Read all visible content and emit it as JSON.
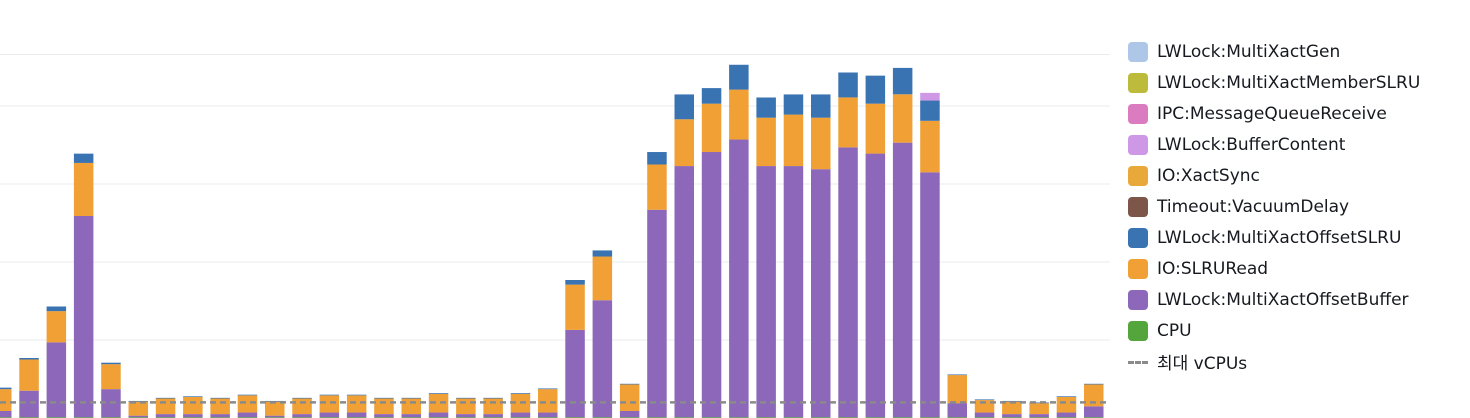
{
  "chart_data": {
    "type": "bar",
    "stacked": true,
    "grid": true,
    "legend_position": "right",
    "ylim": [
      0,
      25
    ],
    "y_gridlines": [
      5,
      10,
      15,
      20,
      23.3
    ],
    "max_vcpus": 1,
    "series": [
      {
        "name": "CPU",
        "color": "#54a53b",
        "values": [
          0.05,
          0.05,
          0.05,
          0.05,
          0.05,
          0.05,
          0.05,
          0.05,
          0.05,
          0.05,
          0.05,
          0.05,
          0.05,
          0.05,
          0.05,
          0.05,
          0.05,
          0.05,
          0.05,
          0.05,
          0.05,
          0.05,
          0.05,
          0.05,
          0.05,
          0.05,
          0.05,
          0.05,
          0.05,
          0.05,
          0.05,
          0.05,
          0.05,
          0.05,
          0.05,
          0.05,
          0.05,
          0.05,
          0.05,
          0.05,
          0.05
        ]
      },
      {
        "name": "LWLock:MultiXactOffsetBuffer",
        "color": "#8d67b9",
        "values": [
          0.4,
          1.7,
          4.8,
          12.9,
          1.8,
          0.1,
          0.2,
          0.2,
          0.2,
          0.3,
          0.1,
          0.2,
          0.3,
          0.3,
          0.2,
          0.2,
          0.3,
          0.2,
          0.2,
          0.3,
          0.3,
          5.6,
          7.5,
          0.4,
          13.3,
          16.1,
          17.0,
          17.8,
          16.1,
          16.1,
          15.9,
          17.3,
          16.9,
          17.6,
          15.7,
          0.9,
          0.3,
          0.2,
          0.2,
          0.3,
          0.7
        ]
      },
      {
        "name": "IO:SLRURead",
        "color": "#f0a034",
        "values": [
          1.4,
          2.0,
          2.0,
          3.4,
          1.6,
          0.9,
          1.0,
          1.1,
          1.0,
          1.1,
          0.9,
          1.0,
          1.1,
          1.1,
          1.0,
          1.0,
          1.2,
          1.0,
          1.0,
          1.2,
          1.5,
          2.9,
          2.8,
          1.7,
          2.9,
          3.0,
          3.1,
          3.2,
          3.1,
          3.3,
          3.3,
          3.2,
          3.2,
          3.1,
          3.3,
          1.8,
          0.8,
          0.8,
          0.7,
          1.0,
          1.4
        ]
      },
      {
        "name": "LWLock:MultiXactOffsetSLRU",
        "color": "#3a73b2",
        "values": [
          0.1,
          0.1,
          0.3,
          0.6,
          0.1,
          0.05,
          0.05,
          0.05,
          0.05,
          0.05,
          0.05,
          0.05,
          0.05,
          0.05,
          0.05,
          0.05,
          0.05,
          0.05,
          0.05,
          0.05,
          0.05,
          0.3,
          0.4,
          0.05,
          0.8,
          1.6,
          1.0,
          1.6,
          1.3,
          1.3,
          1.5,
          1.6,
          1.8,
          1.7,
          1.3,
          0.05,
          0.05,
          0.05,
          0.05,
          0.05,
          0.05
        ]
      },
      {
        "name": "Timeout:VacuumDelay",
        "color": "#7d5549",
        "values": []
      },
      {
        "name": "IO:XactSync",
        "color": "#e8a83a",
        "values": []
      },
      {
        "name": "LWLock:BufferContent",
        "color": "#cf98e6",
        "values": [
          0,
          0,
          0,
          0,
          0,
          0,
          0,
          0,
          0,
          0,
          0,
          0,
          0,
          0,
          0,
          0,
          0,
          0,
          0,
          0,
          0,
          0,
          0,
          0,
          0,
          0,
          0,
          0,
          0,
          0,
          0,
          0,
          0,
          0,
          0.5,
          0,
          0,
          0,
          0,
          0,
          0
        ]
      },
      {
        "name": "IPC:MessageQueueReceive",
        "color": "#dc7cc0",
        "values": []
      },
      {
        "name": "LWLock:MultiXactMemberSLRU",
        "color": "#bcbb3c",
        "values": []
      },
      {
        "name": "LWLock:MultiXactGen",
        "color": "#aec7e8",
        "values": []
      }
    ],
    "legend": [
      {
        "label": "LWLock:MultiXactGen",
        "color": "#aec7e8",
        "kind": "box"
      },
      {
        "label": "LWLock:MultiXactMemberSLRU",
        "color": "#bcbb3c",
        "kind": "box"
      },
      {
        "label": "IPC:MessageQueueReceive",
        "color": "#dc7cc0",
        "kind": "box"
      },
      {
        "label": "LWLock:BufferContent",
        "color": "#cf98e6",
        "kind": "box"
      },
      {
        "label": "IO:XactSync",
        "color": "#e8a83a",
        "kind": "box"
      },
      {
        "label": "Timeout:VacuumDelay",
        "color": "#7d5549",
        "kind": "box"
      },
      {
        "label": "LWLock:MultiXactOffsetSLRU",
        "color": "#3a73b2",
        "kind": "box"
      },
      {
        "label": "IO:SLRURead",
        "color": "#f0a034",
        "kind": "box"
      },
      {
        "label": "LWLock:MultiXactOffsetBuffer",
        "color": "#8d67b9",
        "kind": "box"
      },
      {
        "label": "CPU",
        "color": "#54a53b",
        "kind": "box"
      },
      {
        "label": "최대 vCPUs",
        "color": "#8a8a8a",
        "kind": "dash"
      }
    ]
  }
}
